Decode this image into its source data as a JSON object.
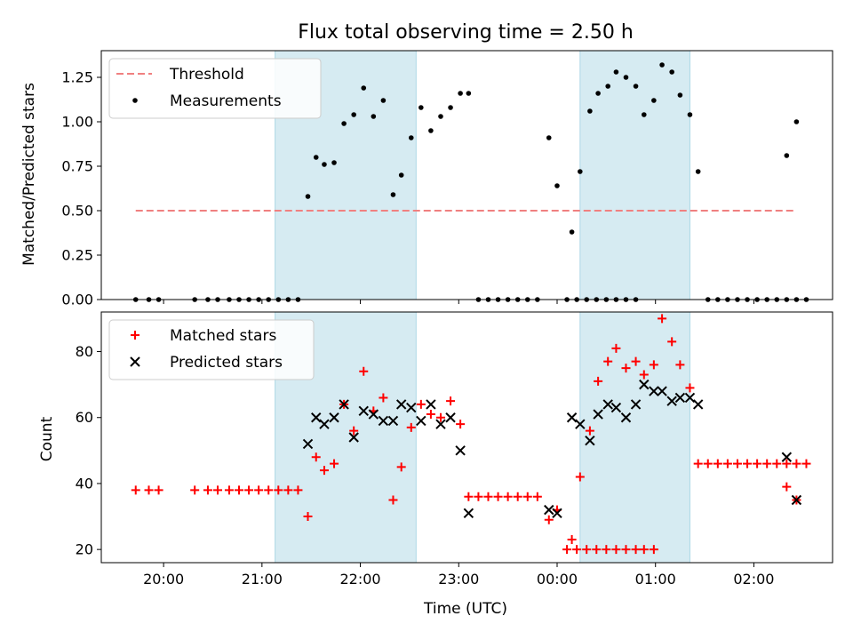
{
  "chart_data": [
    {
      "type": "scatter",
      "title": "Flux total observing time = 2.50 h",
      "xlabel": "",
      "ylabel": "Matched/Predicted stars",
      "ylim": [
        0,
        1.4
      ],
      "yticks": [
        "0.00",
        "0.25",
        "0.50",
        "0.75",
        "1.00",
        "1.25"
      ],
      "ytick_values": [
        0,
        0.25,
        0.5,
        0.75,
        1.0,
        1.25
      ],
      "shaded_ranges": [
        [
          "21:08",
          "22:34"
        ],
        [
          "00:14",
          "01:21"
        ]
      ],
      "threshold": {
        "name": "Threshold",
        "value": 0.5,
        "x_start": "19:43",
        "x_end": "02:26",
        "color": "#f08080"
      },
      "series": [
        {
          "name": "Measurements",
          "color": "#000000",
          "points": [
            [
              "19:43",
              0
            ],
            [
              "19:51",
              0
            ],
            [
              "19:57",
              0
            ],
            [
              "20:19",
              0
            ],
            [
              "20:27",
              0
            ],
            [
              "20:33",
              0
            ],
            [
              "20:40",
              0
            ],
            [
              "20:46",
              0
            ],
            [
              "20:52",
              0
            ],
            [
              "20:58",
              0
            ],
            [
              "21:04",
              0
            ],
            [
              "21:10",
              0
            ],
            [
              "21:16",
              0
            ],
            [
              "21:22",
              0
            ],
            [
              "21:28",
              0.58
            ],
            [
              "21:33",
              0.8
            ],
            [
              "21:38",
              0.76
            ],
            [
              "21:44",
              0.77
            ],
            [
              "21:50",
              0.99
            ],
            [
              "21:56",
              1.04
            ],
            [
              "22:02",
              1.19
            ],
            [
              "22:08",
              1.03
            ],
            [
              "22:14",
              1.12
            ],
            [
              "22:20",
              0.59
            ],
            [
              "22:25",
              0.7
            ],
            [
              "22:31",
              0.91
            ],
            [
              "22:37",
              1.08
            ],
            [
              "22:43",
              0.95
            ],
            [
              "22:49",
              1.03
            ],
            [
              "22:55",
              1.08
            ],
            [
              "23:01",
              1.16
            ],
            [
              "23:06",
              1.16
            ],
            [
              "23:12",
              0
            ],
            [
              "23:18",
              0
            ],
            [
              "23:24",
              0
            ],
            [
              "23:30",
              0
            ],
            [
              "23:36",
              0
            ],
            [
              "23:42",
              0
            ],
            [
              "23:48",
              0
            ],
            [
              "23:55",
              0.91
            ],
            [
              "00:00",
              0.64
            ],
            [
              "00:06",
              0
            ],
            [
              "00:12",
              0
            ],
            [
              "00:18",
              0
            ],
            [
              "00:24",
              0
            ],
            [
              "00:30",
              0
            ],
            [
              "00:36",
              0
            ],
            [
              "00:42",
              0
            ],
            [
              "00:48",
              0
            ],
            [
              "00:09",
              0.38
            ],
            [
              "00:14",
              0.72
            ],
            [
              "00:20",
              1.06
            ],
            [
              "00:25",
              1.16
            ],
            [
              "00:31",
              1.2
            ],
            [
              "00:36",
              1.28
            ],
            [
              "00:42",
              1.25
            ],
            [
              "00:48",
              1.2
            ],
            [
              "00:53",
              1.04
            ],
            [
              "00:59",
              1.12
            ],
            [
              "01:04",
              1.32
            ],
            [
              "01:10",
              1.28
            ],
            [
              "01:15",
              1.15
            ],
            [
              "01:21",
              1.04
            ],
            [
              "01:26",
              0.72
            ],
            [
              "01:32",
              0
            ],
            [
              "01:38",
              0
            ],
            [
              "01:44",
              0
            ],
            [
              "01:50",
              0
            ],
            [
              "01:56",
              0
            ],
            [
              "02:02",
              0
            ],
            [
              "02:08",
              0
            ],
            [
              "02:14",
              0
            ],
            [
              "02:20",
              0
            ],
            [
              "02:26",
              0
            ],
            [
              "02:32",
              0
            ],
            [
              "02:20",
              0.81
            ],
            [
              "02:26",
              1.0
            ]
          ]
        }
      ],
      "legend": "top-left"
    },
    {
      "type": "scatter",
      "title": "",
      "xlabel": "Time (UTC)",
      "ylabel": "Count",
      "ylim": [
        16,
        92
      ],
      "yticks": [
        "20",
        "40",
        "60",
        "80"
      ],
      "ytick_values": [
        20,
        40,
        60,
        80
      ],
      "xticks": [
        "20:00",
        "21:00",
        "22:00",
        "23:00",
        "00:00",
        "01:00",
        "02:00"
      ],
      "shaded_ranges": [
        [
          "21:08",
          "22:34"
        ],
        [
          "00:14",
          "01:21"
        ]
      ],
      "series": [
        {
          "name": "Matched stars",
          "marker": "plus",
          "color": "#ff0000",
          "points": [
            [
              "19:43",
              38
            ],
            [
              "19:51",
              38
            ],
            [
              "19:57",
              38
            ],
            [
              "20:19",
              38
            ],
            [
              "20:27",
              38
            ],
            [
              "20:33",
              38
            ],
            [
              "20:40",
              38
            ],
            [
              "20:46",
              38
            ],
            [
              "20:52",
              38
            ],
            [
              "20:58",
              38
            ],
            [
              "21:04",
              38
            ],
            [
              "21:10",
              38
            ],
            [
              "21:16",
              38
            ],
            [
              "21:22",
              38
            ],
            [
              "21:28",
              30
            ],
            [
              "21:33",
              48
            ],
            [
              "21:38",
              44
            ],
            [
              "21:44",
              46
            ],
            [
              "21:50",
              64
            ],
            [
              "21:56",
              56
            ],
            [
              "22:02",
              74
            ],
            [
              "22:08",
              62
            ],
            [
              "22:14",
              66
            ],
            [
              "22:20",
              35
            ],
            [
              "22:25",
              45
            ],
            [
              "22:31",
              57
            ],
            [
              "22:37",
              64
            ],
            [
              "22:43",
              61
            ],
            [
              "22:49",
              60
            ],
            [
              "22:55",
              65
            ],
            [
              "23:01",
              58
            ],
            [
              "23:06",
              36
            ],
            [
              "23:12",
              36
            ],
            [
              "23:18",
              36
            ],
            [
              "23:24",
              36
            ],
            [
              "23:30",
              36
            ],
            [
              "23:36",
              36
            ],
            [
              "23:42",
              36
            ],
            [
              "23:48",
              36
            ],
            [
              "23:55",
              29
            ],
            [
              "00:00",
              32
            ],
            [
              "00:06",
              20
            ],
            [
              "00:12",
              20
            ],
            [
              "00:18",
              20
            ],
            [
              "00:24",
              20
            ],
            [
              "00:30",
              20
            ],
            [
              "00:36",
              20
            ],
            [
              "00:42",
              20
            ],
            [
              "00:48",
              20
            ],
            [
              "00:53",
              20
            ],
            [
              "00:59",
              20
            ],
            [
              "00:09",
              23
            ],
            [
              "00:14",
              42
            ],
            [
              "00:20",
              56
            ],
            [
              "00:25",
              71
            ],
            [
              "00:31",
              77
            ],
            [
              "00:36",
              81
            ],
            [
              "00:42",
              75
            ],
            [
              "00:48",
              77
            ],
            [
              "00:53",
              73
            ],
            [
              "00:59",
              76
            ],
            [
              "01:04",
              90
            ],
            [
              "01:10",
              83
            ],
            [
              "01:15",
              76
            ],
            [
              "01:21",
              69
            ],
            [
              "01:26",
              46
            ],
            [
              "01:32",
              46
            ],
            [
              "01:38",
              46
            ],
            [
              "01:44",
              46
            ],
            [
              "01:50",
              46
            ],
            [
              "01:56",
              46
            ],
            [
              "02:02",
              46
            ],
            [
              "02:08",
              46
            ],
            [
              "02:14",
              46
            ],
            [
              "02:20",
              46
            ],
            [
              "02:26",
              46
            ],
            [
              "02:32",
              46
            ],
            [
              "02:20",
              39
            ],
            [
              "02:26",
              35
            ]
          ]
        },
        {
          "name": "Predicted stars",
          "marker": "x",
          "color": "#000000",
          "points": [
            [
              "21:28",
              52
            ],
            [
              "21:33",
              60
            ],
            [
              "21:38",
              58
            ],
            [
              "21:44",
              60
            ],
            [
              "21:50",
              64
            ],
            [
              "21:56",
              54
            ],
            [
              "22:02",
              62
            ],
            [
              "22:08",
              61
            ],
            [
              "22:14",
              59
            ],
            [
              "22:20",
              59
            ],
            [
              "22:25",
              64
            ],
            [
              "22:31",
              63
            ],
            [
              "22:37",
              59
            ],
            [
              "22:43",
              64
            ],
            [
              "22:49",
              58
            ],
            [
              "22:55",
              60
            ],
            [
              "23:01",
              50
            ],
            [
              "23:06",
              31
            ],
            [
              "23:55",
              32
            ],
            [
              "00:00",
              31
            ],
            [
              "00:09",
              60
            ],
            [
              "00:14",
              58
            ],
            [
              "00:20",
              53
            ],
            [
              "00:25",
              61
            ],
            [
              "00:31",
              64
            ],
            [
              "00:36",
              63
            ],
            [
              "00:42",
              60
            ],
            [
              "00:48",
              64
            ],
            [
              "00:53",
              70
            ],
            [
              "00:59",
              68
            ],
            [
              "01:04",
              68
            ],
            [
              "01:10",
              65
            ],
            [
              "01:15",
              66
            ],
            [
              "01:21",
              66
            ],
            [
              "01:26",
              64
            ],
            [
              "02:20",
              48
            ],
            [
              "02:26",
              35
            ]
          ]
        }
      ],
      "legend": "top-left"
    }
  ]
}
